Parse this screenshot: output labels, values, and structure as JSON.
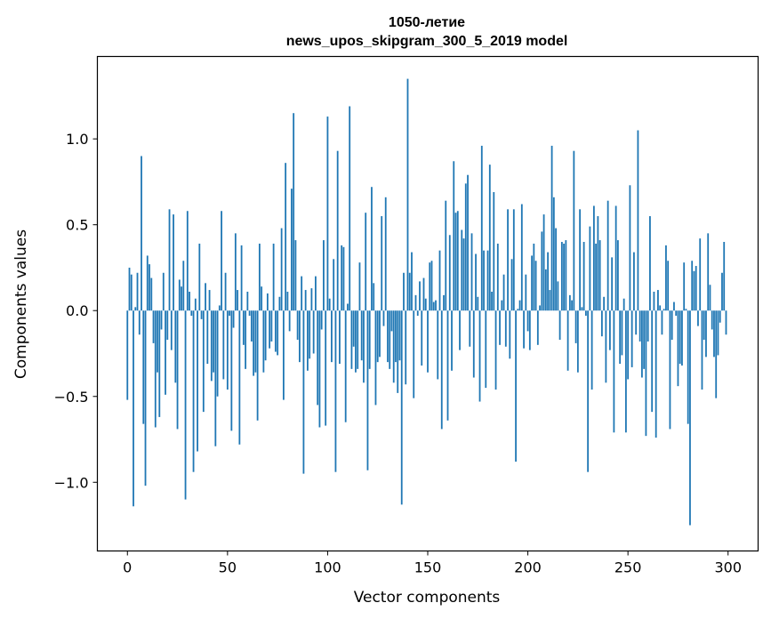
{
  "chart_data": {
    "type": "bar",
    "title_line1": "1050-летие",
    "title_line2": "news_upos_skipgram_300_5_2019 model",
    "xlabel": "Vector components",
    "ylabel": "Components values",
    "xlim": [
      -15,
      315
    ],
    "ylim": [
      -1.4,
      1.48
    ],
    "xticks": [
      0,
      50,
      100,
      150,
      200,
      250,
      300
    ],
    "xtick_labels": [
      "0",
      "50",
      "100",
      "150",
      "200",
      "250",
      "300"
    ],
    "yticks": [
      -1.0,
      -0.5,
      0.0,
      0.5,
      1.0
    ],
    "ytick_labels": [
      "−1.0",
      "−0.5",
      "0.0",
      "0.5",
      "1.0"
    ],
    "bar_color": "#1f77b4",
    "values": [
      -0.52,
      0.25,
      0.21,
      -1.14,
      0.02,
      0.22,
      -0.14,
      0.9,
      -0.66,
      -1.02,
      0.32,
      0.27,
      0.19,
      -0.19,
      -0.68,
      -0.36,
      -0.62,
      -0.11,
      0.22,
      -0.49,
      -0.17,
      0.59,
      -0.23,
      0.56,
      -0.42,
      -0.69,
      0.18,
      0.14,
      0.29,
      -1.1,
      0.58,
      0.11,
      -0.03,
      -0.94,
      0.07,
      -0.82,
      0.39,
      -0.05,
      -0.59,
      0.16,
      -0.31,
      0.12,
      -0.41,
      -0.36,
      -0.79,
      -0.5,
      0.03,
      0.58,
      -0.4,
      0.22,
      -0.46,
      -0.03,
      -0.7,
      -0.1,
      0.45,
      0.12,
      -0.78,
      0.38,
      -0.2,
      -0.34,
      0.11,
      -0.03,
      -0.18,
      -0.38,
      -0.36,
      -0.64,
      0.39,
      0.14,
      -0.36,
      -0.29,
      0.1,
      -0.22,
      -0.18,
      0.39,
      -0.24,
      -0.26,
      0.08,
      0.48,
      -0.52,
      0.86,
      0.11,
      -0.12,
      0.71,
      1.15,
      0.41,
      -0.17,
      -0.3,
      0.2,
      -0.95,
      0.12,
      -0.35,
      -0.28,
      0.13,
      -0.25,
      0.2,
      -0.55,
      -0.68,
      -0.11,
      0.41,
      -0.67,
      1.13,
      0.07,
      -0.3,
      0.3,
      -0.94,
      0.93,
      -0.31,
      0.38,
      0.37,
      -0.65,
      0.04,
      1.19,
      -0.34,
      -0.21,
      -0.36,
      -0.34,
      0.28,
      -0.29,
      -0.42,
      0.57,
      -0.93,
      -0.34,
      0.72,
      0.16,
      -0.55,
      -0.3,
      -0.27,
      0.55,
      -0.09,
      0.66,
      -0.3,
      -0.34,
      -0.12,
      -0.42,
      -0.3,
      -0.48,
      -0.29,
      -1.13,
      0.22,
      -0.43,
      1.35,
      0.22,
      0.34,
      -0.51,
      0.09,
      -0.03,
      0.17,
      -0.32,
      0.19,
      0.07,
      -0.36,
      0.28,
      0.29,
      0.05,
      0.06,
      -0.4,
      0.35,
      -0.69,
      0.09,
      0.64,
      -0.64,
      0.44,
      -0.35,
      0.87,
      0.57,
      0.58,
      -0.23,
      0.47,
      0.42,
      0.74,
      0.79,
      -0.21,
      0.45,
      -0.39,
      0.33,
      0.08,
      -0.53,
      0.96,
      0.35,
      -0.45,
      0.35,
      0.85,
      0.11,
      0.69,
      -0.46,
      0.39,
      -0.2,
      0.06,
      0.21,
      -0.21,
      0.59,
      -0.28,
      0.3,
      0.59,
      -0.88,
      0.01,
      0.06,
      0.62,
      -0.22,
      0.21,
      -0.12,
      -0.23,
      0.32,
      0.39,
      0.29,
      -0.2,
      0.03,
      0.46,
      0.56,
      0.24,
      0.34,
      0.12,
      0.96,
      0.66,
      0.48,
      0.17,
      -0.17,
      0.4,
      0.39,
      0.41,
      -0.35,
      0.09,
      0.06,
      0.93,
      -0.19,
      -0.36,
      0.59,
      0.02,
      0.4,
      -0.03,
      -0.94,
      0.49,
      -0.46,
      0.61,
      0.39,
      0.55,
      0.41,
      -0.15,
      0.08,
      -0.42,
      0.64,
      -0.23,
      0.31,
      -0.71,
      0.61,
      0.41,
      -0.31,
      -0.26,
      0.07,
      -0.71,
      -0.4,
      0.73,
      -0.33,
      0.34,
      -0.14,
      1.05,
      -0.18,
      -0.39,
      -0.34,
      -0.73,
      -0.18,
      0.55,
      -0.59,
      0.11,
      -0.74,
      0.12,
      0.03,
      -0.14,
      0.01,
      0.38,
      0.29,
      -0.69,
      -0.17,
      0.05,
      -0.03,
      -0.44,
      -0.31,
      -0.32,
      0.28,
      0.01,
      -0.66,
      -1.25,
      0.29,
      0.23,
      0.26,
      -0.09,
      0.42,
      -0.46,
      -0.17,
      -0.27,
      0.45,
      0.15,
      -0.11,
      -0.27,
      -0.51,
      -0.26,
      -0.07,
      0.22,
      0.4,
      -0.14
    ]
  }
}
